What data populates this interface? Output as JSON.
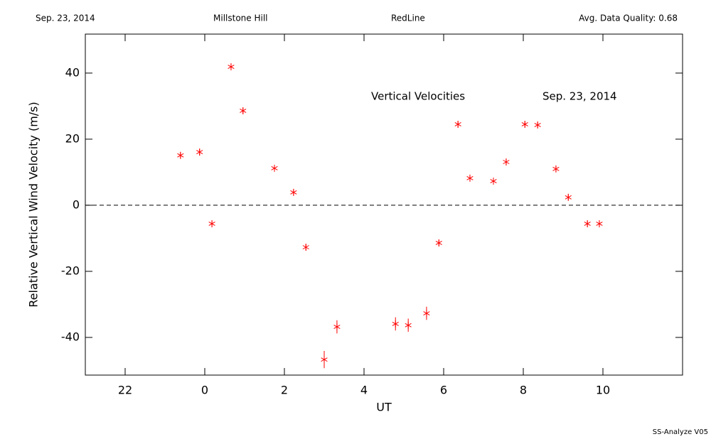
{
  "chart_data": {
    "type": "scatter",
    "header": [
      "Sep. 23, 2014",
      "Millstone Hill",
      "RedLine",
      "Avg. Data Quality: 0.68"
    ],
    "annotations": [
      "Vertical Velocities",
      "Sep. 23, 2014"
    ],
    "footer": "SS-Analyze V05",
    "xlabel": "UT",
    "ylabel": "Relative Vertical Wind Velocity (m/s)",
    "xlim": [
      -3,
      12
    ],
    "ylim": [
      -51.4,
      51.8
    ],
    "xticks": [
      {
        "value": -2,
        "label": "22"
      },
      0,
      2,
      4,
      6,
      8,
      10
    ],
    "yticks": [
      -40,
      -20,
      0,
      20,
      40
    ],
    "hline": 0,
    "series": [
      {
        "color": "#ff0000",
        "x": [
          -0.61,
          -0.13,
          0.18,
          0.66,
          0.96,
          1.75,
          2.23,
          2.54,
          3.0,
          3.32,
          4.79,
          5.11,
          5.57,
          5.88,
          6.36,
          6.66,
          7.25,
          7.57,
          8.04,
          8.36,
          8.82,
          9.13,
          9.61,
          9.91
        ],
        "values": [
          15.1,
          16.1,
          -5.6,
          41.9,
          28.6,
          11.2,
          3.9,
          -12.7,
          -46.7,
          -36.8,
          -35.9,
          -36.3,
          -32.7,
          -11.4,
          24.5,
          8.2,
          7.3,
          13.1,
          24.5,
          24.3,
          11.0,
          2.4,
          -5.6,
          -5.6
        ],
        "errors": [
          1,
          1,
          1,
          1,
          1,
          1,
          1,
          1,
          2.6,
          2,
          2,
          2,
          2,
          1,
          1,
          1,
          1,
          1,
          1,
          1,
          1,
          1,
          1,
          1
        ]
      }
    ]
  }
}
